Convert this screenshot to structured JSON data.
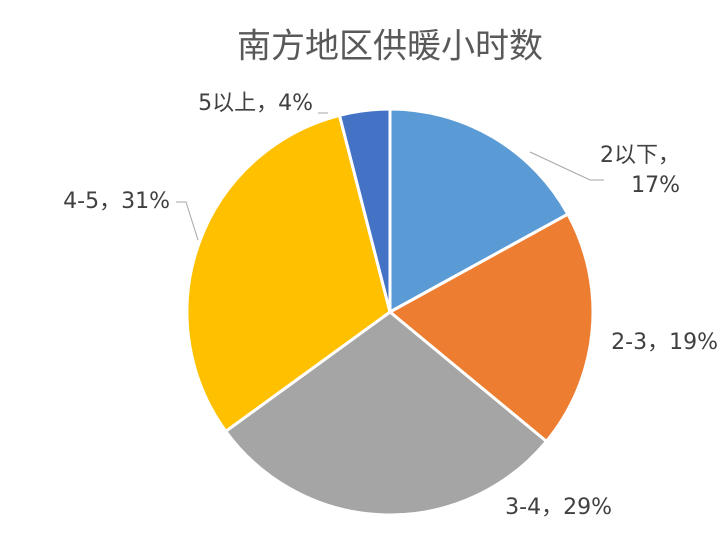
{
  "chart_data": {
    "type": "pie",
    "title": "南方地区供暖小时数",
    "categories": [
      "2以下",
      "2-3",
      "3-4",
      "4-5",
      "5以上"
    ],
    "values": [
      17,
      19,
      29,
      31,
      4
    ],
    "value_labels": [
      "17%",
      "19%",
      "29%",
      "31%",
      "4%"
    ],
    "label_separator": "，",
    "colors": [
      "#5b9bd5",
      "#ed7d31",
      "#a5a5a5",
      "#ffc000",
      "#4472c4"
    ]
  }
}
